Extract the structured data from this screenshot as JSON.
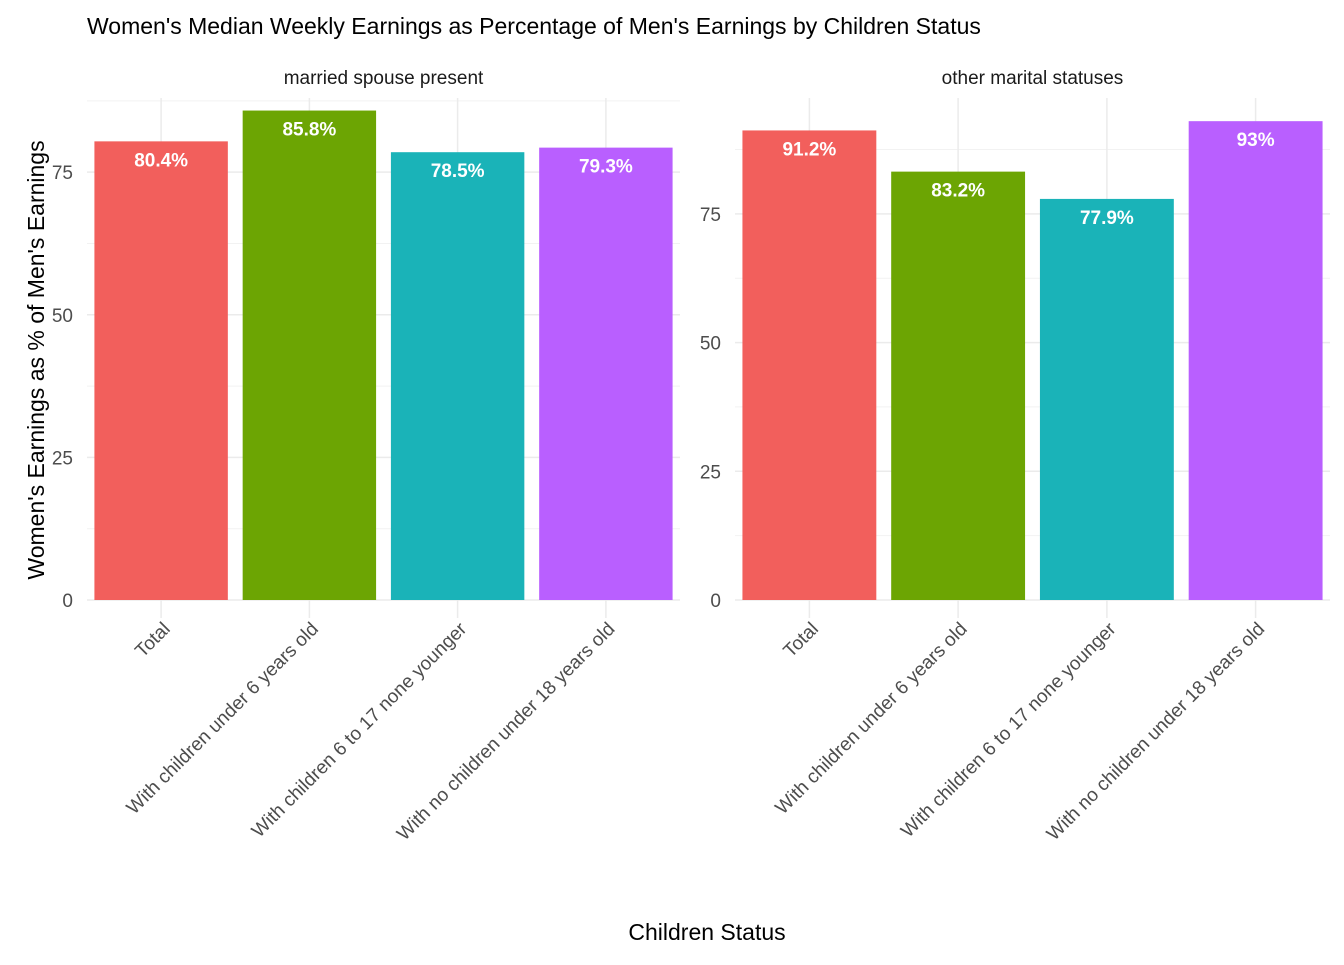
{
  "chart_data": {
    "type": "bar",
    "title": "Women's Median Weekly Earnings as Percentage of Men's Earnings by Children Status",
    "xlabel": "Children Status",
    "ylabel": "Women's Earnings as % of Men's Earnings",
    "categories": [
      "Total",
      "With children under 6 years old",
      "With children 6 to 17 none younger",
      "With no children under 18 years old"
    ],
    "colors": [
      "#F8766D",
      "#7CAE00",
      "#00BFC4",
      "#C77CFF"
    ],
    "bar_colors_rendered": [
      "#F25F5C",
      "#6CA503",
      "#1AB3B8",
      "#B95FFF"
    ],
    "grid": true,
    "legend": "none",
    "y_ticks": [
      0,
      25,
      50,
      75
    ],
    "panels": [
      {
        "facet_label": "married spouse present",
        "values": [
          80.4,
          85.8,
          78.5,
          79.3
        ],
        "labels": [
          "80.4%",
          "85.8%",
          "78.5%",
          "79.3%"
        ],
        "ylim": [
          0,
          88
        ]
      },
      {
        "facet_label": "other marital statuses",
        "values": [
          91.2,
          83.2,
          77.9,
          93
        ],
        "labels": [
          "91.2%",
          "83.2%",
          "77.9%",
          "93%"
        ],
        "ylim": [
          0,
          97.5
        ]
      }
    ]
  }
}
